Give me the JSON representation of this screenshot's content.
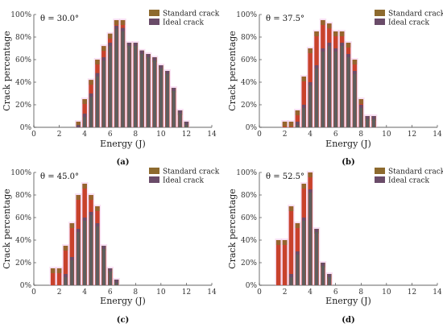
{
  "chart_data": [
    {
      "type": "bar",
      "panel": "(a)",
      "annotation": "θ = 30.0°",
      "xlabel": "Energy (J)",
      "ylabel": "Crack percentage",
      "xlim": [
        0,
        14
      ],
      "ylim": [
        0,
        100
      ],
      "x_ticks": [
        0,
        2,
        4,
        6,
        8,
        10,
        12,
        14
      ],
      "y_ticks": [
        "0%",
        "20%",
        "40%",
        "60%",
        "80%",
        "100%"
      ],
      "legend_position": "top-right",
      "bar_width": 0.35,
      "x": [
        3.5,
        4.0,
        4.5,
        5.0,
        5.5,
        6.0,
        6.5,
        7.0,
        7.5,
        8.0,
        8.5,
        9.0,
        9.5,
        10.0,
        10.5,
        11.0,
        11.5,
        12.0
      ],
      "series": [
        {
          "name": "Standard crack",
          "values": [
            5,
            25,
            42,
            60,
            72,
            83,
            95,
            95,
            75,
            75,
            68,
            65,
            62,
            55,
            50,
            35,
            15,
            5
          ]
        },
        {
          "name": "Ideal crack",
          "values": [
            2,
            12,
            30,
            48,
            62,
            75,
            90,
            88,
            75,
            75,
            68,
            65,
            62,
            55,
            50,
            35,
            15,
            5
          ]
        }
      ]
    },
    {
      "type": "bar",
      "panel": "(b)",
      "annotation": "θ = 37.5°",
      "xlabel": "Energy (J)",
      "ylabel": "Crack percentage",
      "xlim": [
        0,
        14
      ],
      "ylim": [
        0,
        100
      ],
      "x_ticks": [
        0,
        2,
        4,
        6,
        8,
        10,
        12,
        14
      ],
      "y_ticks": [
        "0%",
        "20%",
        "40%",
        "60%",
        "80%",
        "100%"
      ],
      "legend_position": "top-right",
      "bar_width": 0.35,
      "x": [
        2.0,
        2.5,
        3.0,
        3.5,
        4.0,
        4.5,
        5.0,
        5.5,
        6.0,
        6.5,
        7.0,
        7.5,
        8.0,
        8.5,
        9.0
      ],
      "series": [
        {
          "name": "Standard crack",
          "values": [
            5,
            5,
            15,
            45,
            70,
            85,
            95,
            92,
            85,
            85,
            75,
            60,
            25,
            10,
            10
          ]
        },
        {
          "name": "Ideal crack",
          "values": [
            0,
            0,
            5,
            20,
            40,
            55,
            70,
            75,
            70,
            75,
            65,
            50,
            20,
            10,
            10
          ]
        }
      ]
    },
    {
      "type": "bar",
      "panel": "(c)",
      "annotation": "θ = 45.0°",
      "xlabel": "Energy (J)",
      "ylabel": "Crack percentage",
      "xlim": [
        0,
        14
      ],
      "ylim": [
        0,
        100
      ],
      "x_ticks": [
        0,
        2,
        4,
        6,
        8,
        10,
        12,
        14
      ],
      "y_ticks": [
        "0%",
        "20%",
        "40%",
        "60%",
        "80%",
        "100%"
      ],
      "legend_position": "top-right",
      "bar_width": 0.35,
      "x": [
        1.5,
        2.0,
        2.5,
        3.0,
        3.5,
        4.0,
        4.5,
        5.0,
        5.5,
        6.0,
        6.5
      ],
      "series": [
        {
          "name": "Standard crack",
          "values": [
            15,
            15,
            35,
            55,
            80,
            90,
            80,
            70,
            35,
            15,
            5
          ]
        },
        {
          "name": "Ideal crack",
          "values": [
            0,
            0,
            10,
            25,
            50,
            60,
            65,
            55,
            35,
            15,
            5
          ]
        }
      ]
    },
    {
      "type": "bar",
      "panel": "(d)",
      "annotation": "θ = 52.5°",
      "xlabel": "Energy (J)",
      "ylabel": "Crack percentage",
      "xlim": [
        0,
        14
      ],
      "ylim": [
        0,
        100
      ],
      "x_ticks": [
        0,
        2,
        4,
        6,
        8,
        10,
        12,
        14
      ],
      "y_ticks": [
        "0%",
        "20%",
        "40%",
        "60%",
        "80%",
        "100%"
      ],
      "legend_position": "top-right",
      "bar_width": 0.35,
      "x": [
        1.5,
        2.0,
        2.5,
        3.0,
        3.5,
        4.0,
        4.5,
        5.0,
        5.5
      ],
      "series": [
        {
          "name": "Standard crack",
          "values": [
            40,
            40,
            70,
            55,
            90,
            100,
            50,
            20,
            10
          ]
        },
        {
          "name": "Ideal crack",
          "values": [
            0,
            0,
            10,
            30,
            60,
            85,
            50,
            20,
            10
          ]
        }
      ]
    }
  ],
  "colors": {
    "standard": "#8d6a2e",
    "ideal": "#6a4c69",
    "noise_red": "#c8422c",
    "noise_pink": "#f1bde6",
    "remaining": "#5e5e5e"
  }
}
